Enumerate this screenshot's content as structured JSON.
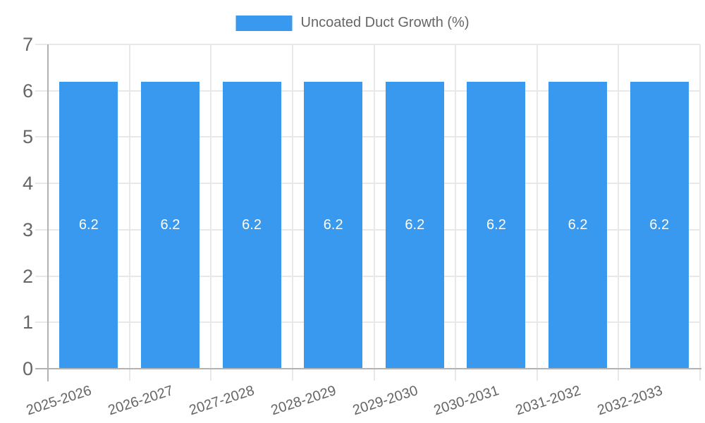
{
  "chart_data": {
    "type": "bar",
    "series_name": "Uncoated Duct Growth (%)",
    "categories": [
      "2025-2026",
      "2026-2027",
      "2027-2028",
      "2028-2029",
      "2029-2030",
      "2030-2031",
      "2031-2032",
      "2032-2033"
    ],
    "values": [
      6.2,
      6.2,
      6.2,
      6.2,
      6.2,
      6.2,
      6.2,
      6.2
    ],
    "bar_labels": [
      "6.2",
      "6.2",
      "6.2",
      "6.2",
      "6.2",
      "6.2",
      "6.2",
      "6.2"
    ],
    "ytick_labels": [
      "0",
      "1",
      "2",
      "3",
      "4",
      "5",
      "6",
      "7"
    ],
    "ylim": [
      0,
      7
    ],
    "ytick_step": 1,
    "grid": true,
    "legend_position": "top",
    "colors": {
      "bar": "#3999EE",
      "grid": "#E8E8E8",
      "axis": "#B3B3B3",
      "text": "#666666",
      "bar_label": "#FFFFFF",
      "background": "#FFFFFF"
    }
  }
}
